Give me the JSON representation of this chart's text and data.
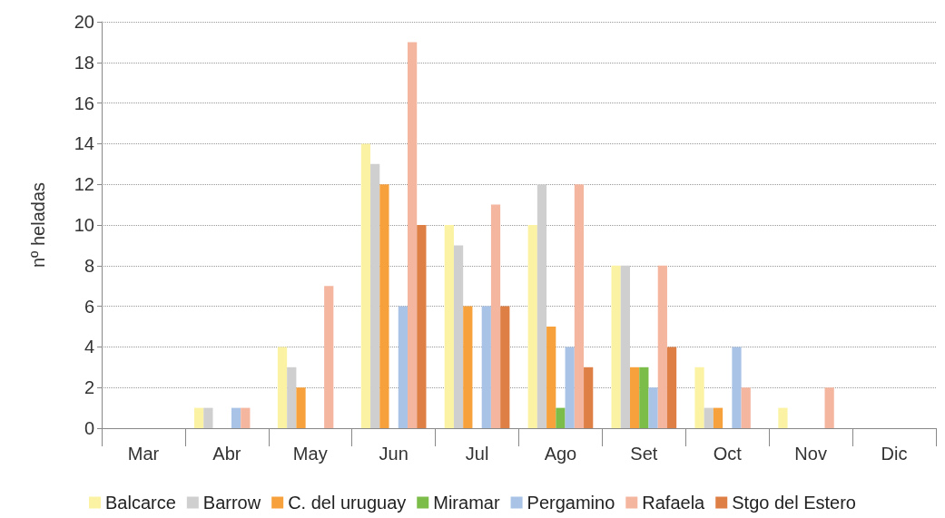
{
  "chart_data": {
    "type": "bar",
    "ylabel": "nº heladas",
    "categories": [
      "Mar",
      "Abr",
      "May",
      "Jun",
      "Jul",
      "Ago",
      "Set",
      "Oct",
      "Nov",
      "Dic"
    ],
    "series": [
      {
        "name": "Balcarce",
        "color": "#fbf3a3",
        "values": [
          0,
          1,
          4,
          14,
          10,
          10,
          8,
          3,
          1,
          0
        ]
      },
      {
        "name": "Barrow",
        "color": "#cfcfcf",
        "values": [
          0,
          1,
          3,
          13,
          9,
          12,
          8,
          1,
          0,
          0
        ]
      },
      {
        "name": "C. del uruguay",
        "color": "#f7a13c",
        "values": [
          0,
          0,
          2,
          12,
          6,
          5,
          3,
          1,
          0,
          0
        ]
      },
      {
        "name": "Miramar",
        "color": "#7cbd4a",
        "values": [
          0,
          0,
          0,
          0,
          0,
          1,
          3,
          0,
          0,
          0
        ]
      },
      {
        "name": "Pergamino",
        "color": "#a9c3e7",
        "values": [
          0,
          1,
          0,
          6,
          6,
          4,
          2,
          4,
          0,
          0
        ]
      },
      {
        "name": "Rafaela",
        "color": "#f5b6a0",
        "values": [
          0,
          1,
          7,
          19,
          11,
          12,
          8,
          2,
          2,
          0
        ]
      },
      {
        "name": "Stgo del Estero",
        "color": "#de7f46",
        "values": [
          0,
          0,
          0,
          10,
          6,
          3,
          4,
          0,
          0,
          0
        ]
      }
    ],
    "ylim": [
      0,
      20
    ],
    "yticks": [
      0,
      2,
      4,
      6,
      8,
      10,
      12,
      14,
      16,
      18,
      20
    ],
    "grid": "y",
    "legend": "bottom"
  }
}
